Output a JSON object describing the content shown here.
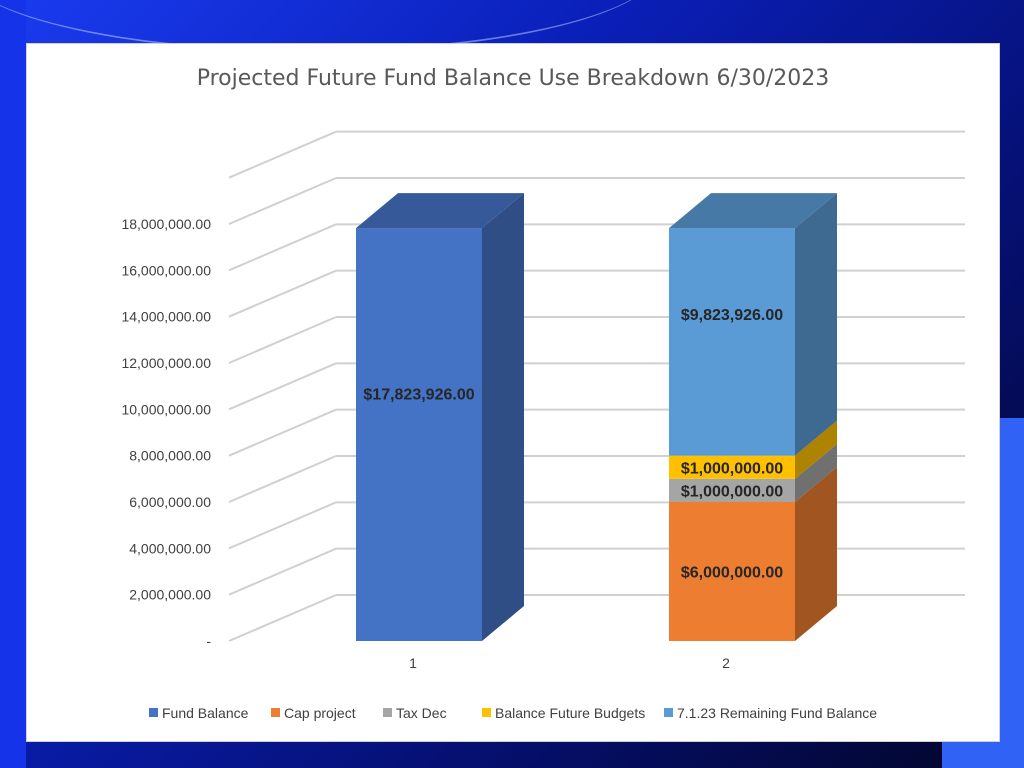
{
  "colors": {
    "fund_balance": "#4472c4",
    "cap_project": "#ed7d31",
    "tax_dec": "#a5a5a5",
    "balance_future_budgets": "#ffc000",
    "remaining_fund_balance": "#5b9bd5"
  },
  "chart_data": {
    "type": "bar",
    "stacked": true,
    "title": "Projected Future Fund Balance Use Breakdown 6/30/2023",
    "xlabel": "",
    "ylabel": "",
    "categories": [
      "1",
      "2"
    ],
    "ylim": [
      0,
      18000000
    ],
    "yticks": [
      "-",
      "2,000,000.00",
      "4,000,000.00",
      "6,000,000.00",
      "8,000,000.00",
      "10,000,000.00",
      "12,000,000.00",
      "14,000,000.00",
      "16,000,000.00",
      "18,000,000.00"
    ],
    "grid": true,
    "legend_position": "bottom",
    "series": [
      {
        "name": "Fund Balance",
        "color_key": "fund_balance",
        "values": [
          17823926,
          0
        ],
        "labels": [
          "$17,823,926.00",
          ""
        ]
      },
      {
        "name": "Cap project",
        "color_key": "cap_project",
        "values": [
          0,
          6000000
        ],
        "labels": [
          "",
          "$6,000,000.00"
        ]
      },
      {
        "name": "Tax Dec",
        "color_key": "tax_dec",
        "values": [
          0,
          1000000
        ],
        "labels": [
          "",
          "$1,000,000.00"
        ]
      },
      {
        "name": "Balance Future Budgets",
        "color_key": "balance_future_budgets",
        "values": [
          0,
          1000000
        ],
        "labels": [
          "",
          "$1,000,000.00"
        ]
      },
      {
        "name": "7.1.23 Remaining Fund Balance",
        "color_key": "remaining_fund_balance",
        "values": [
          0,
          9823926
        ],
        "labels": [
          "",
          "$9,823,926.00"
        ]
      }
    ]
  }
}
